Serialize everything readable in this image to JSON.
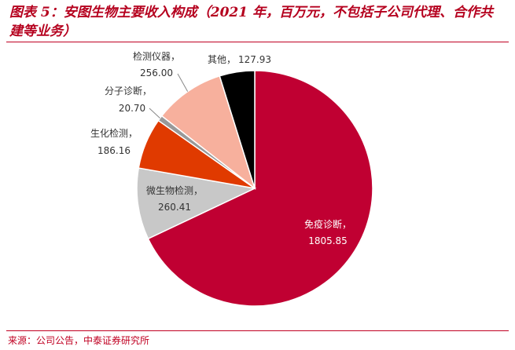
{
  "title": "图表 5：安图生物主要收入构成（2021 年，百万元，不包括子公司代理、合作共建等业务）",
  "source": "来源：公司公告，中泰证券研究所",
  "chart_data": {
    "type": "pie",
    "title": "图表 5：安图生物主要收入构成（2021 年，百万元，不包括子公司代理、合作共建等业务）",
    "slices": [
      {
        "label": "免疫诊断，",
        "value": 1805.85,
        "value_text": "1805.85",
        "color": "#c00032"
      },
      {
        "label": "微生物检测，",
        "value": 260.41,
        "value_text": "260.41",
        "color": "#c8c8c8"
      },
      {
        "label": "生化检测，",
        "value": 186.16,
        "value_text": "186.16",
        "color": "#e03a00"
      },
      {
        "label": "分子诊断，",
        "value": 20.7,
        "value_text": "20.70",
        "color": "#999999"
      },
      {
        "label": "检测仪器，",
        "value": 256.0,
        "value_text": "256.00",
        "color": "#f7b09d"
      },
      {
        "label": "其他，",
        "value": 127.93,
        "value_text": "127.93",
        "color": "#000000"
      }
    ]
  }
}
